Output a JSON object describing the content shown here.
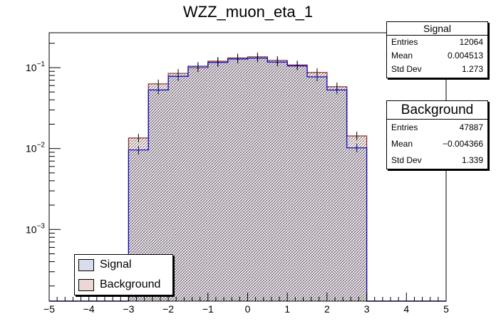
{
  "chart_data": {
    "type": "histogram",
    "title": "WZZ_muon_eta_1",
    "xlabel": "",
    "ylabel": "",
    "xlim": [
      -5,
      5
    ],
    "ylim": [
      0.00013,
      0.27
    ],
    "y_scale": "log",
    "x_ticks": [
      "−5",
      "−4",
      "−3",
      "−2",
      "−1",
      "0",
      "1",
      "2",
      "3",
      "4",
      "5"
    ],
    "y_ticks": [
      {
        "label_base": "10",
        "label_exp": "−1",
        "value": 0.1
      },
      {
        "label_base": "10",
        "label_exp": "−2",
        "value": 0.01
      },
      {
        "label_base": "10",
        "label_exp": "−3",
        "value": 0.001
      }
    ],
    "bin_edges": [
      -3.0,
      -2.5,
      -2.0,
      -1.5,
      -1.0,
      -0.5,
      0.0,
      0.5,
      1.0,
      1.5,
      2.0,
      2.5,
      3.0
    ],
    "series": [
      {
        "name": "Signal",
        "color": "#0000cc",
        "fill": "#8aa0c8",
        "values": [
          0.0096,
          0.053,
          0.078,
          0.104,
          0.116,
          0.128,
          0.131,
          0.117,
          0.105,
          0.077,
          0.053,
          0.0102
        ]
      },
      {
        "name": "Background",
        "color": "#8b2a2a",
        "fill": "#c8a0a0",
        "values": [
          0.0135,
          0.063,
          0.085,
          0.1,
          0.12,
          0.132,
          0.136,
          0.123,
          0.108,
          0.087,
          0.058,
          0.0143
        ]
      }
    ],
    "legend_position": "bottom-left",
    "grid": false
  },
  "stats": {
    "signal": {
      "title": "Signal",
      "entries_label": "Entries",
      "entries": "12064",
      "mean_label": "Mean",
      "mean": "0.004513",
      "std_label": "Std Dev",
      "std": "1.273"
    },
    "background": {
      "title": "Background",
      "entries_label": "Entries",
      "entries": "47887",
      "mean_label": "Mean",
      "mean": "−0.004366",
      "std_label": "Std Dev",
      "std": "1.339"
    }
  },
  "legend": {
    "signal": "Signal",
    "background": "Background"
  }
}
